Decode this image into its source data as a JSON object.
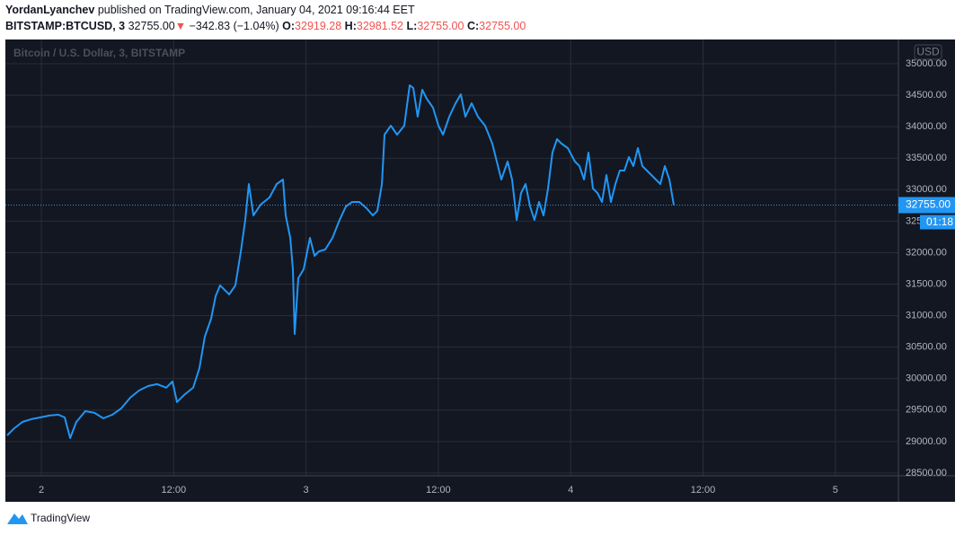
{
  "header": {
    "author": "YordanLyanchev",
    "published": "published on TradingView.com, January 04, 2021 09:16:44 EET",
    "symbol": "BITSTAMP:BTCUSD, 3",
    "price": "32755.00",
    "arrow": "▼",
    "change": "−342.83 (−1.04%)",
    "o_label": "O:",
    "o": "32919.28",
    "h_label": "H:",
    "h": "32981.52",
    "l_label": "L:",
    "l": "32755.00",
    "c_label": "C:",
    "c": "32755.00"
  },
  "chart_data": {
    "type": "line",
    "watermark": "Bitcoin / U.S. Dollar, 3, BITSTAMP",
    "currency": "USD",
    "countdown": "01:18",
    "color": "#2196f3",
    "grid": true,
    "last_price": {
      "value": 32755,
      "label": "32755.00"
    },
    "xlim": [
      -3.26,
      77.72
    ],
    "xticks": [
      {
        "value": 0,
        "label": "2"
      },
      {
        "value": 12,
        "label": "12:00"
      },
      {
        "value": 24,
        "label": "3"
      },
      {
        "value": 36,
        "label": "12:00"
      },
      {
        "value": 48,
        "label": "4"
      },
      {
        "value": 60,
        "label": "12:00"
      },
      {
        "value": 72,
        "label": "5"
      }
    ],
    "ylim": [
      28457,
      35385
    ],
    "yticks": [
      {
        "value": 28500,
        "label": "28500.00"
      },
      {
        "value": 29000,
        "label": "29000.00"
      },
      {
        "value": 29500,
        "label": "29500.00"
      },
      {
        "value": 30000,
        "label": "30000.00"
      },
      {
        "value": 30500,
        "label": "30500.00"
      },
      {
        "value": 31000,
        "label": "31000.00"
      },
      {
        "value": 31500,
        "label": "31500.00"
      },
      {
        "value": 32000,
        "label": "32000.00"
      },
      {
        "value": 32500,
        "label": "32500.00"
      },
      {
        "value": 33000,
        "label": "33000.00"
      },
      {
        "value": 33500,
        "label": "33500.00"
      },
      {
        "value": 34000,
        "label": "34000.00"
      },
      {
        "value": 34500,
        "label": "34500.00"
      },
      {
        "value": 35000,
        "label": "35000.00"
      }
    ],
    "x": [
      -3.1,
      -2.53,
      -1.71,
      -0.9,
      -0.08,
      0.73,
      1.55,
      2.12,
      2.61,
      3.18,
      3.99,
      4.81,
      5.62,
      6.44,
      7.25,
      8.07,
      8.88,
      9.69,
      10.51,
      11.32,
      11.89,
      12.3,
      12.95,
      13.77,
      14.34,
      14.83,
      15.4,
      15.8,
      16.21,
      17.03,
      17.6,
      18.09,
      18.49,
      18.82,
      19.23,
      19.88,
      20.69,
      21.34,
      21.91,
      22.16,
      22.57,
      22.81,
      22.97,
      23.3,
      23.79,
      24.36,
      24.77,
      25.17,
      25.74,
      26.4,
      27.05,
      27.62,
      28.19,
      28.84,
      29.49,
      30.06,
      30.47,
      30.88,
      31.12,
      31.69,
      32.26,
      32.91,
      33.4,
      33.73,
      34.13,
      34.54,
      34.95,
      35.52,
      36.01,
      36.42,
      36.99,
      37.56,
      38.04,
      38.45,
      39.02,
      39.59,
      40.24,
      40.9,
      41.3,
      41.71,
      42.28,
      42.69,
      43.1,
      43.5,
      43.91,
      44.32,
      44.72,
      45.13,
      45.54,
      45.95,
      46.35,
      46.76,
      47.17,
      47.74,
      48.39,
      48.8,
      49.21,
      49.61,
      50.02,
      50.43,
      50.84,
      51.24,
      51.65,
      52.06,
      52.46,
      52.87,
      53.28,
      53.69,
      54.09,
      54.5,
      54.91,
      55.32,
      55.72,
      56.13,
      56.54,
      56.95,
      57.35
    ],
    "values": [
      29099,
      29199,
      29313,
      29356,
      29384,
      29413,
      29427,
      29384,
      29056,
      29313,
      29484,
      29456,
      29370,
      29427,
      29527,
      29698,
      29812,
      29883,
      29912,
      29855,
      29954,
      29627,
      29741,
      29855,
      30168,
      30667,
      30952,
      31308,
      31480,
      31337,
      31480,
      32021,
      32520,
      33090,
      32591,
      32762,
      32876,
      33090,
      33161,
      32591,
      32235,
      31736,
      30710,
      31594,
      31736,
      32235,
      31950,
      32021,
      32050,
      32235,
      32520,
      32734,
      32805,
      32805,
      32705,
      32591,
      32663,
      33090,
      33874,
      34017,
      33874,
      34017,
      34658,
      34615,
      34159,
      34587,
      34444,
      34302,
      34017,
      33874,
      34159,
      34373,
      34515,
      34159,
      34373,
      34159,
      34017,
      33731,
      33446,
      33161,
      33446,
      33161,
      32520,
      32948,
      33090,
      32734,
      32520,
      32805,
      32591,
      33019,
      33589,
      33803,
      33731,
      33660,
      33446,
      33375,
      33161,
      33589,
      33019,
      32948,
      32805,
      33233,
      32805,
      33090,
      33304,
      33304,
      33518,
      33375,
      33660,
      33375,
      33304,
      33233,
      33161,
      33090,
      33375,
      33161,
      32755
    ]
  }
}
